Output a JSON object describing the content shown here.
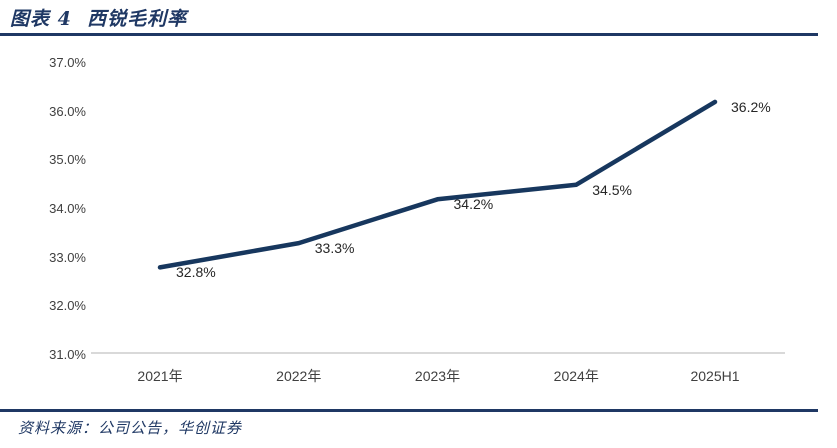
{
  "header": {
    "title": "图表 4  西锐毛利率"
  },
  "footer": {
    "source_label": "资料来源：公司公告，华创证券"
  },
  "colors": {
    "accent_navy": "#1F3864",
    "line_navy": "#17375E",
    "axis_gray": "#D9D9D9",
    "tick_text": "#404040",
    "data_label_text": "#262626"
  },
  "chart_data": {
    "type": "line",
    "title": "西锐毛利率",
    "categories": [
      "2021年",
      "2022年",
      "2023年",
      "2024年",
      "2025H1"
    ],
    "values": [
      32.8,
      33.3,
      34.2,
      34.5,
      36.2
    ],
    "data_labels": [
      "32.8%",
      "33.3%",
      "34.2%",
      "34.5%",
      "36.2%"
    ],
    "y_ticks": [
      "37.0%",
      "36.0%",
      "35.0%",
      "34.0%",
      "33.0%",
      "32.0%",
      "31.0%"
    ],
    "y_tick_values": [
      37.0,
      36.0,
      35.0,
      34.0,
      33.0,
      32.0,
      31.0
    ],
    "ylim": [
      31.0,
      37.0
    ],
    "grid": false,
    "legend": "none",
    "xlabel": "",
    "ylabel": ""
  }
}
